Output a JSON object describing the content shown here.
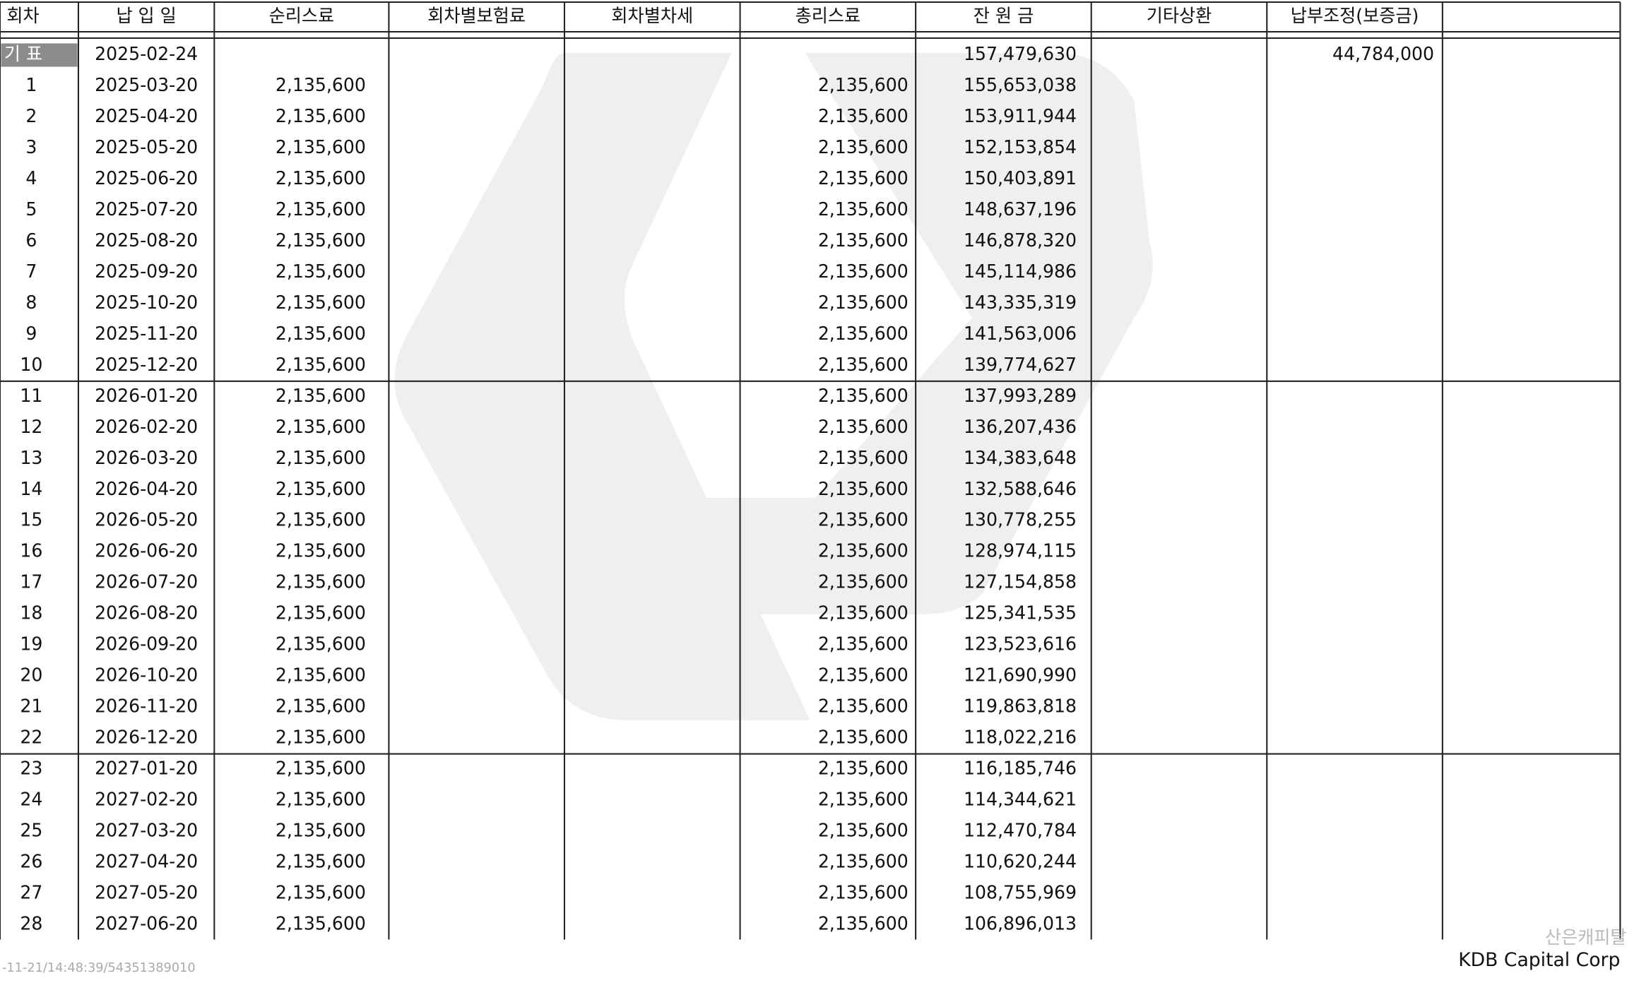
{
  "header": {
    "columns": [
      "회차",
      "납 입 일",
      "순리스료",
      "회차별보험료",
      "회차별차세",
      "총리스료",
      "잔 원 금",
      "기타상환",
      "납부조정(보증금)"
    ]
  },
  "table": {
    "rows": [
      {
        "no": "기 표",
        "date": "2025-02-24",
        "balance": "157,479,630",
        "adjust": "44,784,000"
      },
      {
        "no": "1",
        "date": "2025-03-20",
        "net": "2,135,600",
        "total": "2,135,600",
        "balance": "155,653,038"
      },
      {
        "no": "2",
        "date": "2025-04-20",
        "net": "2,135,600",
        "total": "2,135,600",
        "balance": "153,911,944"
      },
      {
        "no": "3",
        "date": "2025-05-20",
        "net": "2,135,600",
        "total": "2,135,600",
        "balance": "152,153,854"
      },
      {
        "no": "4",
        "date": "2025-06-20",
        "net": "2,135,600",
        "total": "2,135,600",
        "balance": "150,403,891"
      },
      {
        "no": "5",
        "date": "2025-07-20",
        "net": "2,135,600",
        "total": "2,135,600",
        "balance": "148,637,196"
      },
      {
        "no": "6",
        "date": "2025-08-20",
        "net": "2,135,600",
        "total": "2,135,600",
        "balance": "146,878,320"
      },
      {
        "no": "7",
        "date": "2025-09-20",
        "net": "2,135,600",
        "total": "2,135,600",
        "balance": "145,114,986"
      },
      {
        "no": "8",
        "date": "2025-10-20",
        "net": "2,135,600",
        "total": "2,135,600",
        "balance": "143,335,319"
      },
      {
        "no": "9",
        "date": "2025-11-20",
        "net": "2,135,600",
        "total": "2,135,600",
        "balance": "141,563,006"
      },
      {
        "no": "10",
        "date": "2025-12-20",
        "net": "2,135,600",
        "total": "2,135,600",
        "balance": "139,774,627"
      },
      {
        "no": "11",
        "date": "2026-01-20",
        "net": "2,135,600",
        "total": "2,135,600",
        "balance": "137,993,289"
      },
      {
        "no": "12",
        "date": "2026-02-20",
        "net": "2,135,600",
        "total": "2,135,600",
        "balance": "136,207,436"
      },
      {
        "no": "13",
        "date": "2026-03-20",
        "net": "2,135,600",
        "total": "2,135,600",
        "balance": "134,383,648"
      },
      {
        "no": "14",
        "date": "2026-04-20",
        "net": "2,135,600",
        "total": "2,135,600",
        "balance": "132,588,646"
      },
      {
        "no": "15",
        "date": "2026-05-20",
        "net": "2,135,600",
        "total": "2,135,600",
        "balance": "130,778,255"
      },
      {
        "no": "16",
        "date": "2026-06-20",
        "net": "2,135,600",
        "total": "2,135,600",
        "balance": "128,974,115"
      },
      {
        "no": "17",
        "date": "2026-07-20",
        "net": "2,135,600",
        "total": "2,135,600",
        "balance": "127,154,858"
      },
      {
        "no": "18",
        "date": "2026-08-20",
        "net": "2,135,600",
        "total": "2,135,600",
        "balance": "125,341,535"
      },
      {
        "no": "19",
        "date": "2026-09-20",
        "net": "2,135,600",
        "total": "2,135,600",
        "balance": "123,523,616"
      },
      {
        "no": "20",
        "date": "2026-10-20",
        "net": "2,135,600",
        "total": "2,135,600",
        "balance": "121,690,990"
      },
      {
        "no": "21",
        "date": "2026-11-20",
        "net": "2,135,600",
        "total": "2,135,600",
        "balance": "119,863,818"
      },
      {
        "no": "22",
        "date": "2026-12-20",
        "net": "2,135,600",
        "total": "2,135,600",
        "balance": "118,022,216"
      },
      {
        "no": "23",
        "date": "2027-01-20",
        "net": "2,135,600",
        "total": "2,135,600",
        "balance": "116,185,746"
      },
      {
        "no": "24",
        "date": "2027-02-20",
        "net": "2,135,600",
        "total": "2,135,600",
        "balance": "114,344,621"
      },
      {
        "no": "25",
        "date": "2027-03-20",
        "net": "2,135,600",
        "total": "2,135,600",
        "balance": "112,470,784"
      },
      {
        "no": "26",
        "date": "2027-04-20",
        "net": "2,135,600",
        "total": "2,135,600",
        "balance": "110,620,244"
      },
      {
        "no": "27",
        "date": "2027-05-20",
        "net": "2,135,600",
        "total": "2,135,600",
        "balance": "108,755,969"
      },
      {
        "no": "28",
        "date": "2027-06-20",
        "net": "2,135,600",
        "total": "2,135,600",
        "balance": "106,896,013"
      }
    ]
  },
  "footer": {
    "stamp": "-11-21/14:48:39/54351389010",
    "company_kr": "산은캐피탈",
    "company_en": "KDB Capital Corp"
  }
}
